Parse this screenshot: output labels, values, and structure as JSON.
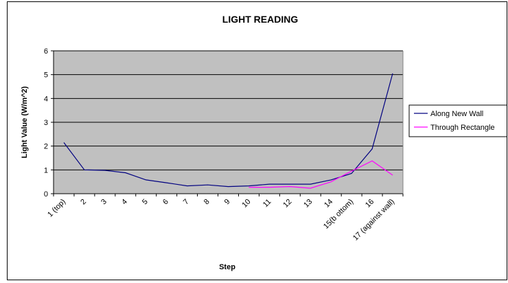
{
  "chart_data": {
    "type": "line",
    "title": "LIGHT READING",
    "xlabel": "Step",
    "ylabel": "Light Value (W/m^2)",
    "ylim": [
      0,
      6
    ],
    "yticks": [
      "0",
      "1",
      "2",
      "3",
      "4",
      "5",
      "6"
    ],
    "categories": [
      "1 (top)",
      "2",
      "3",
      "4",
      "5",
      "6",
      "7",
      "8",
      "9",
      "10",
      "11",
      "12",
      "13",
      "14",
      "15(b ottom)",
      "16",
      "17 (against wall)"
    ],
    "grid": true,
    "legend": "right",
    "colors": {
      "plot_bg": "#c0c0c0",
      "series1": "#000080",
      "series2": "#ff00ff"
    },
    "series": [
      {
        "name": "Along New Wall",
        "values": [
          2.15,
          1.0,
          0.98,
          0.88,
          0.58,
          0.46,
          0.33,
          0.37,
          0.3,
          0.33,
          0.4,
          0.4,
          0.4,
          0.58,
          0.85,
          1.88,
          5.05
        ]
      },
      {
        "name": "Through Rectangle",
        "values": [
          null,
          null,
          null,
          null,
          null,
          null,
          null,
          null,
          null,
          0.27,
          0.27,
          0.3,
          0.23,
          0.5,
          0.95,
          1.38,
          0.78
        ]
      }
    ]
  }
}
